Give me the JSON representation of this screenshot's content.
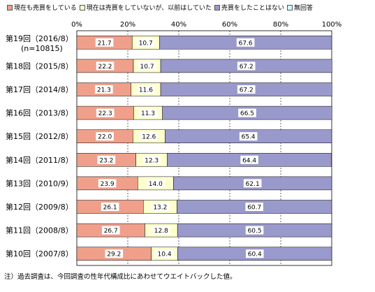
{
  "chart_data": {
    "type": "bar",
    "orientation": "horizontal",
    "stacked": true,
    "percent": true,
    "x_ticks": [
      "0%",
      "20%",
      "40%",
      "60%",
      "80%",
      "100%"
    ],
    "xlim": [
      0,
      100
    ],
    "grid": true,
    "legend_position": "top",
    "categories": [
      "第19回（2016/8）",
      "第18回（2015/8）",
      "第17回（2014/8）",
      "第16回（2013/8）",
      "第15回（2012/8）",
      "第14回（2011/8）",
      "第13回（2010/9）",
      "第12回（2009/8）",
      "第11回（2008/8）",
      "第10回（2007/8）"
    ],
    "category_sublabels": [
      "(n=10815)",
      "",
      "",
      "",
      "",
      "",
      "",
      "",
      "",
      ""
    ],
    "series": [
      {
        "name": "現在も売買をしている",
        "color": "#f0a08a",
        "values": [
          21.7,
          22.2,
          21.3,
          22.3,
          22.0,
          23.2,
          23.9,
          26.1,
          26.7,
          29.2
        ],
        "labels": [
          "21.7",
          "22.2",
          "21.3",
          "22.3",
          "22.0",
          "23.2",
          "23.9",
          "26.1",
          "26.7",
          "29.2"
        ]
      },
      {
        "name": "現在は売買をしていないが、以前はしていた",
        "color": "#ffffcc",
        "values": [
          10.7,
          10.7,
          11.6,
          11.3,
          12.6,
          12.3,
          14.0,
          13.2,
          12.8,
          10.4
        ],
        "labels": [
          "10.7",
          "10.7",
          "11.6",
          "11.3",
          "12.6",
          "12.3",
          "14.0",
          "13.2",
          "12.8",
          "10.4"
        ]
      },
      {
        "name": "売買をしたことはない",
        "color": "#9999cc",
        "values": [
          67.6,
          67.2,
          67.2,
          66.5,
          65.4,
          64.4,
          62.1,
          60.7,
          60.5,
          60.4
        ],
        "labels": [
          "67.6",
          "67.2",
          "67.2",
          "66.5",
          "65.4",
          "64.4",
          "62.1",
          "60.7",
          "60.5",
          "60.4"
        ]
      },
      {
        "name": "無回答",
        "color": "#ccffff",
        "values": [
          0,
          0,
          0,
          0,
          0,
          0,
          0,
          0,
          0,
          0
        ],
        "labels": []
      }
    ]
  },
  "note": "注）過去調査は、今回調査の性年代構成比にあわせてウエイトバックした値。"
}
